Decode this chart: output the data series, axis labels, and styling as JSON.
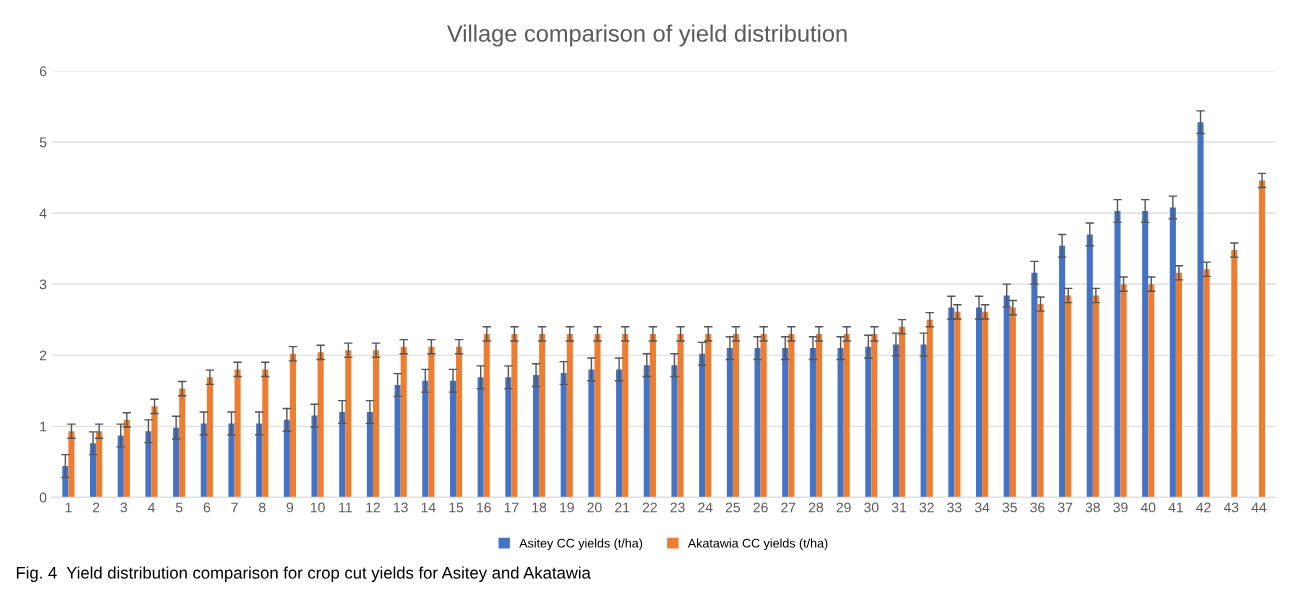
{
  "chart_data": {
    "type": "bar",
    "title": "Village comparison of yield distribution",
    "categories": [
      "1",
      "2",
      "3",
      "4",
      "5",
      "6",
      "7",
      "8",
      "9",
      "10",
      "11",
      "12",
      "13",
      "14",
      "15",
      "16",
      "17",
      "18",
      "19",
      "20",
      "21",
      "22",
      "23",
      "24",
      "25",
      "26",
      "27",
      "28",
      "29",
      "30",
      "31",
      "32",
      "33",
      "34",
      "35",
      "36",
      "37",
      "38",
      "39",
      "40",
      "41",
      "42",
      "43",
      "44"
    ],
    "series": [
      {
        "name": "Asitey CC yields (t/ha)",
        "color": "#4472c4",
        "values": [
          0.44,
          0.76,
          0.87,
          0.93,
          0.98,
          1.04,
          1.04,
          1.04,
          1.09,
          1.15,
          1.2,
          1.2,
          1.58,
          1.64,
          1.64,
          1.69,
          1.69,
          1.72,
          1.75,
          1.8,
          1.8,
          1.86,
          1.86,
          2.02,
          2.1,
          2.1,
          2.1,
          2.1,
          2.1,
          2.12,
          2.15,
          2.15,
          2.67,
          2.67,
          2.84,
          3.16,
          3.54,
          3.7,
          4.03,
          4.03,
          4.08,
          5.28,
          null,
          null
        ],
        "errors": [
          0.16,
          0.16,
          0.16,
          0.16,
          0.16,
          0.16,
          0.16,
          0.16,
          0.16,
          0.16,
          0.16,
          0.16,
          0.16,
          0.16,
          0.16,
          0.16,
          0.16,
          0.16,
          0.16,
          0.16,
          0.16,
          0.16,
          0.16,
          0.16,
          0.16,
          0.16,
          0.16,
          0.16,
          0.16,
          0.16,
          0.16,
          0.16,
          0.16,
          0.16,
          0.16,
          0.16,
          0.16,
          0.16,
          0.16,
          0.16,
          0.16,
          0.16,
          null,
          null
        ]
      },
      {
        "name": "Akatawia CC yields (t/ha)",
        "color": "#ed7d31",
        "values": [
          0.93,
          0.93,
          1.09,
          1.28,
          1.53,
          1.69,
          1.8,
          1.8,
          2.02,
          2.04,
          2.07,
          2.07,
          2.12,
          2.12,
          2.12,
          2.3,
          2.3,
          2.3,
          2.3,
          2.3,
          2.3,
          2.3,
          2.3,
          2.3,
          2.3,
          2.3,
          2.3,
          2.3,
          2.3,
          2.3,
          2.4,
          2.5,
          2.61,
          2.61,
          2.67,
          2.72,
          2.84,
          2.84,
          3.0,
          3.0,
          3.16,
          3.21,
          3.48,
          4.46
        ],
        "errors": [
          0.1,
          0.1,
          0.1,
          0.1,
          0.1,
          0.1,
          0.1,
          0.1,
          0.1,
          0.1,
          0.1,
          0.1,
          0.1,
          0.1,
          0.1,
          0.1,
          0.1,
          0.1,
          0.1,
          0.1,
          0.1,
          0.1,
          0.1,
          0.1,
          0.1,
          0.1,
          0.1,
          0.1,
          0.1,
          0.1,
          0.1,
          0.1,
          0.1,
          0.1,
          0.1,
          0.1,
          0.1,
          0.1,
          0.1,
          0.1,
          0.1,
          0.1,
          0.1,
          0.1
        ]
      }
    ],
    "ylim": [
      0,
      6
    ],
    "yticks": [
      0,
      1,
      2,
      3,
      4,
      5,
      6
    ],
    "grid": "y",
    "legend": "bottom",
    "annotations": [
      "Fig. 4  Yield distribution comparison for crop cut yields for Asitey and Akatawia"
    ]
  }
}
